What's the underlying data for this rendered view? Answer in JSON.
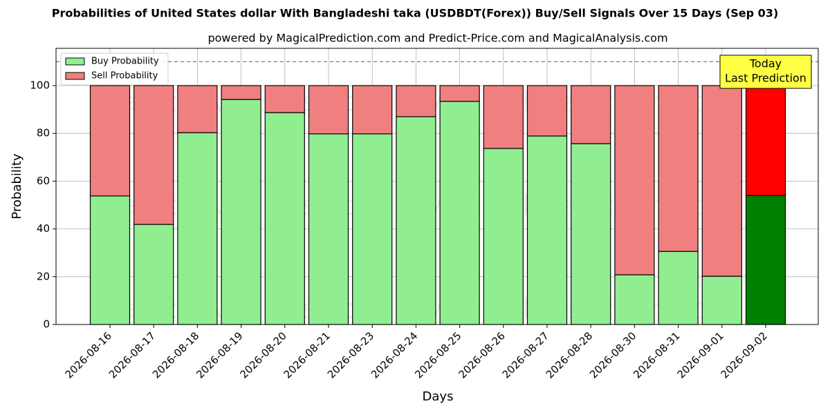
{
  "chart_data": {
    "type": "stacked_bar",
    "title": "Probabilities of United States dollar With Bangladeshi taka (USDBDT(Forex)) Buy/Sell Signals Over 15 Days (Sep 03)",
    "subtitle": "powered by MagicalPrediction.com and Predict-Price.com and MagicalAnalysis.com",
    "x_label": "Days",
    "y_label": "Probability",
    "categories": [
      "2026-08-16",
      "2026-08-17",
      "2026-08-18",
      "2026-08-19",
      "2026-08-20",
      "2026-08-21",
      "2026-08-23",
      "2026-08-24",
      "2026-08-25",
      "2026-08-26",
      "2026-08-27",
      "2026-08-28",
      "2026-08-30",
      "2026-08-31",
      "2026-09-01",
      "2026-09-02"
    ],
    "series": [
      {
        "name": "Buy Probability",
        "color": "#90ee90",
        "today_color": "#008000",
        "values": [
          53.8,
          41.9,
          80.3,
          94.2,
          88.7,
          79.8,
          79.8,
          87,
          93.4,
          73.7,
          78.9,
          75.7,
          20.8,
          30.6,
          20.2,
          54
        ]
      },
      {
        "name": "Sell Probability",
        "color": "#f08080",
        "today_color": "#ff0000",
        "values": [
          46.2,
          58.1,
          19.7,
          5.8,
          11.3,
          20.2,
          20.2,
          13,
          6.6,
          26.3,
          21.1,
          24.3,
          79.2,
          69.4,
          79.8,
          46
        ]
      }
    ],
    "ylim": [
      0,
      115.6
    ],
    "yticks": [
      0,
      20,
      40,
      60,
      80,
      100
    ],
    "grid": true,
    "reference_line": 110,
    "legend": "upper left",
    "annotation": [
      "Today",
      "Last Prediction"
    ],
    "watermarks": [
      "MagicalAnalysis.com",
      "MagicalPrediction.com"
    ]
  }
}
